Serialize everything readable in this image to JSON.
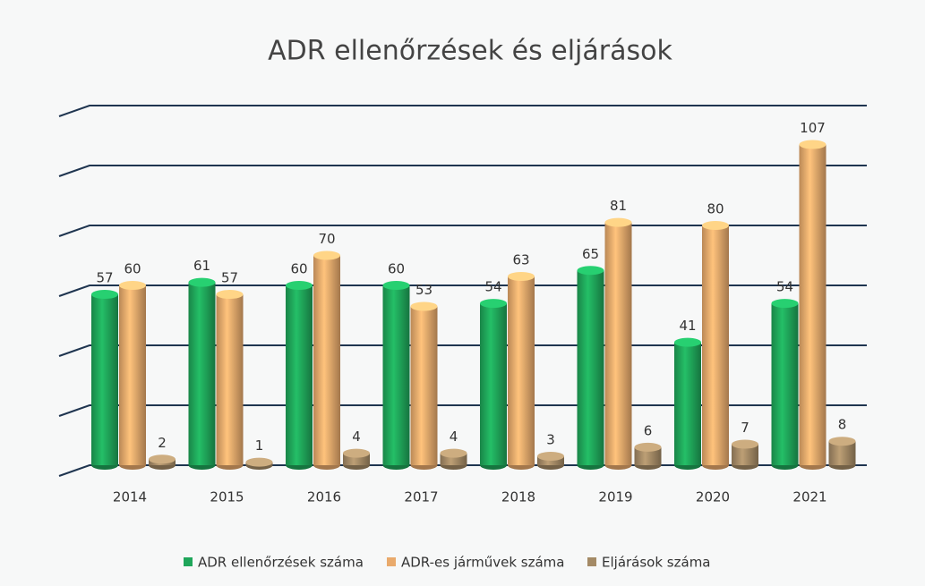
{
  "chart_data": {
    "type": "bar",
    "title": "ADR ellenőrzések és eljárások",
    "categories": [
      "2014",
      "2015",
      "2016",
      "2017",
      "2018",
      "2019",
      "2020",
      "2021"
    ],
    "series": [
      {
        "name": "ADR ellenőrzések száma",
        "color": "#1fa65a",
        "values": [
          57,
          61,
          60,
          60,
          54,
          65,
          41,
          54
        ]
      },
      {
        "name": "ADR-es járművek száma",
        "color": "#e9aa6c",
        "values": [
          60,
          57,
          70,
          53,
          63,
          81,
          80,
          107
        ]
      },
      {
        "name": "Eljárások száma",
        "color": "#a48a66",
        "values": [
          2,
          1,
          4,
          4,
          3,
          6,
          7,
          8
        ]
      }
    ],
    "ylim": [
      0,
      120
    ],
    "yticks": [
      0,
      20,
      40,
      60,
      80,
      100,
      120
    ],
    "grid": true,
    "legend": "bottom"
  }
}
